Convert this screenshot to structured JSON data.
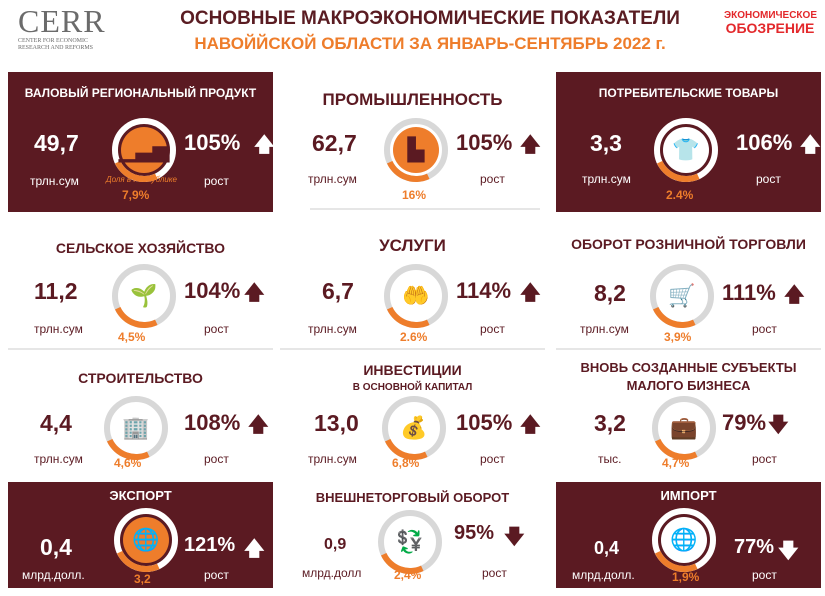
{
  "header": {
    "logo_big": "CERR",
    "logo_small": "CENTER FOR ECONOMIC RESEARCH AND REFORMS",
    "title_line1": "ОСНОВНЫЕ МАКРОЭКОНОМИЧЕСКИЕ ПОКАЗАТЕЛИ",
    "title_line2": "НАВОЙЙСКОЙ ОБЛАСТИ ЗА ЯНВАРЬ-СЕНТЯБРЬ 2022 г.",
    "publisher_a": "ЭКОНОМИЧЕСКОЕ",
    "publisher_b": "ОБОЗРЕНИЕ"
  },
  "cards": {
    "grp": {
      "title": "ВАЛОВЫЙ РЕГИОНАЛЬНЫЙ ПРОДУКТ",
      "value": "49,7",
      "unit": "трлн.сум",
      "share": "7,9%",
      "share_note": "Доля в Республике",
      "growth": "105%",
      "growth_label": "рост",
      "arrow": "up",
      "icon": "growth-chart-icon"
    },
    "industry": {
      "title": "ПРОМЫШЛЕННОСТЬ",
      "value": "62,7",
      "unit": "трлн.сум",
      "share": "16%",
      "growth": "105%",
      "growth_label": "рост",
      "arrow": "up",
      "icon": "factory-icon"
    },
    "consumer": {
      "title": "ПОТРЕБИТЕЛЬСКИЕ ТОВАРЫ",
      "value": "3,3",
      "unit": "трлн.сум",
      "share": "2.4%",
      "growth": "106%",
      "growth_label": "рост",
      "arrow": "up",
      "icon": "tshirt-icon"
    },
    "agri": {
      "title": "СЕЛЬСКОЕ ХОЗЯЙСТВО",
      "value": "11,2",
      "unit": "трлн.сум",
      "share": "4,5%",
      "growth": "104%",
      "growth_label": "рост",
      "arrow": "up",
      "icon": "shovel-plant-icon"
    },
    "services": {
      "title": "УСЛУГИ",
      "value": "6,7",
      "unit": "трлн.сум",
      "share": "2.6%",
      "growth": "114%",
      "growth_label": "рост",
      "arrow": "up",
      "icon": "hand-service-icon"
    },
    "retail": {
      "title": "ОБОРОТ РОЗНИЧНОЙ ТОРГОВЛИ",
      "value": "8,2",
      "unit": "трлн.сум",
      "share": "3,9%",
      "growth": "111%",
      "growth_label": "рост",
      "arrow": "up",
      "icon": "shopping-cart-icon"
    },
    "construction": {
      "title": "СТРОИТЕЛЬСТВО",
      "value": "4,4",
      "unit": "трлн.сум",
      "share": "4,6%",
      "growth": "108%",
      "growth_label": "рост",
      "arrow": "up",
      "icon": "building-icon"
    },
    "investment": {
      "title": "ИНВЕСТИЦИИ",
      "subtitle": "В ОСНОВНОЙ КАПИТАЛ",
      "value": "13,0",
      "unit": "трлн.сум",
      "share": "6,8%",
      "growth": "105%",
      "growth_label": "рост",
      "arrow": "up",
      "icon": "money-hand-icon"
    },
    "smallbiz": {
      "title": "ВНОВЬ СОЗДАННЫЕ СУБЪЕКТЫ",
      "subtitle": "МАЛОГО БИЗНЕСА",
      "value": "3,2",
      "unit": "тыс.",
      "share": "4,7%",
      "growth": "79%",
      "growth_label": "рост",
      "arrow": "down",
      "icon": "briefcase-icon"
    },
    "export": {
      "title": "ЭКСПОРТ",
      "value": "0,4",
      "unit": "млрд.долл.",
      "share": "3,2",
      "growth": "121%",
      "growth_label": "рост",
      "arrow": "up",
      "icon": "globe-export-icon"
    },
    "trade": {
      "title": "ВНЕШНЕТОРГОВЫЙ ОБОРОТ",
      "value": "0,9",
      "unit": "млрд.долл",
      "share": "2,4%",
      "growth": "95%",
      "growth_label": "рост",
      "arrow": "down",
      "icon": "currency-exchange-icon"
    },
    "import": {
      "title": "ИМПОРТ",
      "value": "0,4",
      "unit": "млрд.долл.",
      "share": "1,9%",
      "growth": "77%",
      "growth_label": "рост",
      "arrow": "down",
      "icon": "globe-import-icon"
    }
  },
  "colors": {
    "dark": "#5b1a22",
    "accent": "#ee7d2b",
    "ring": "#d8d8d8",
    "brand_red": "#e3282b"
  }
}
